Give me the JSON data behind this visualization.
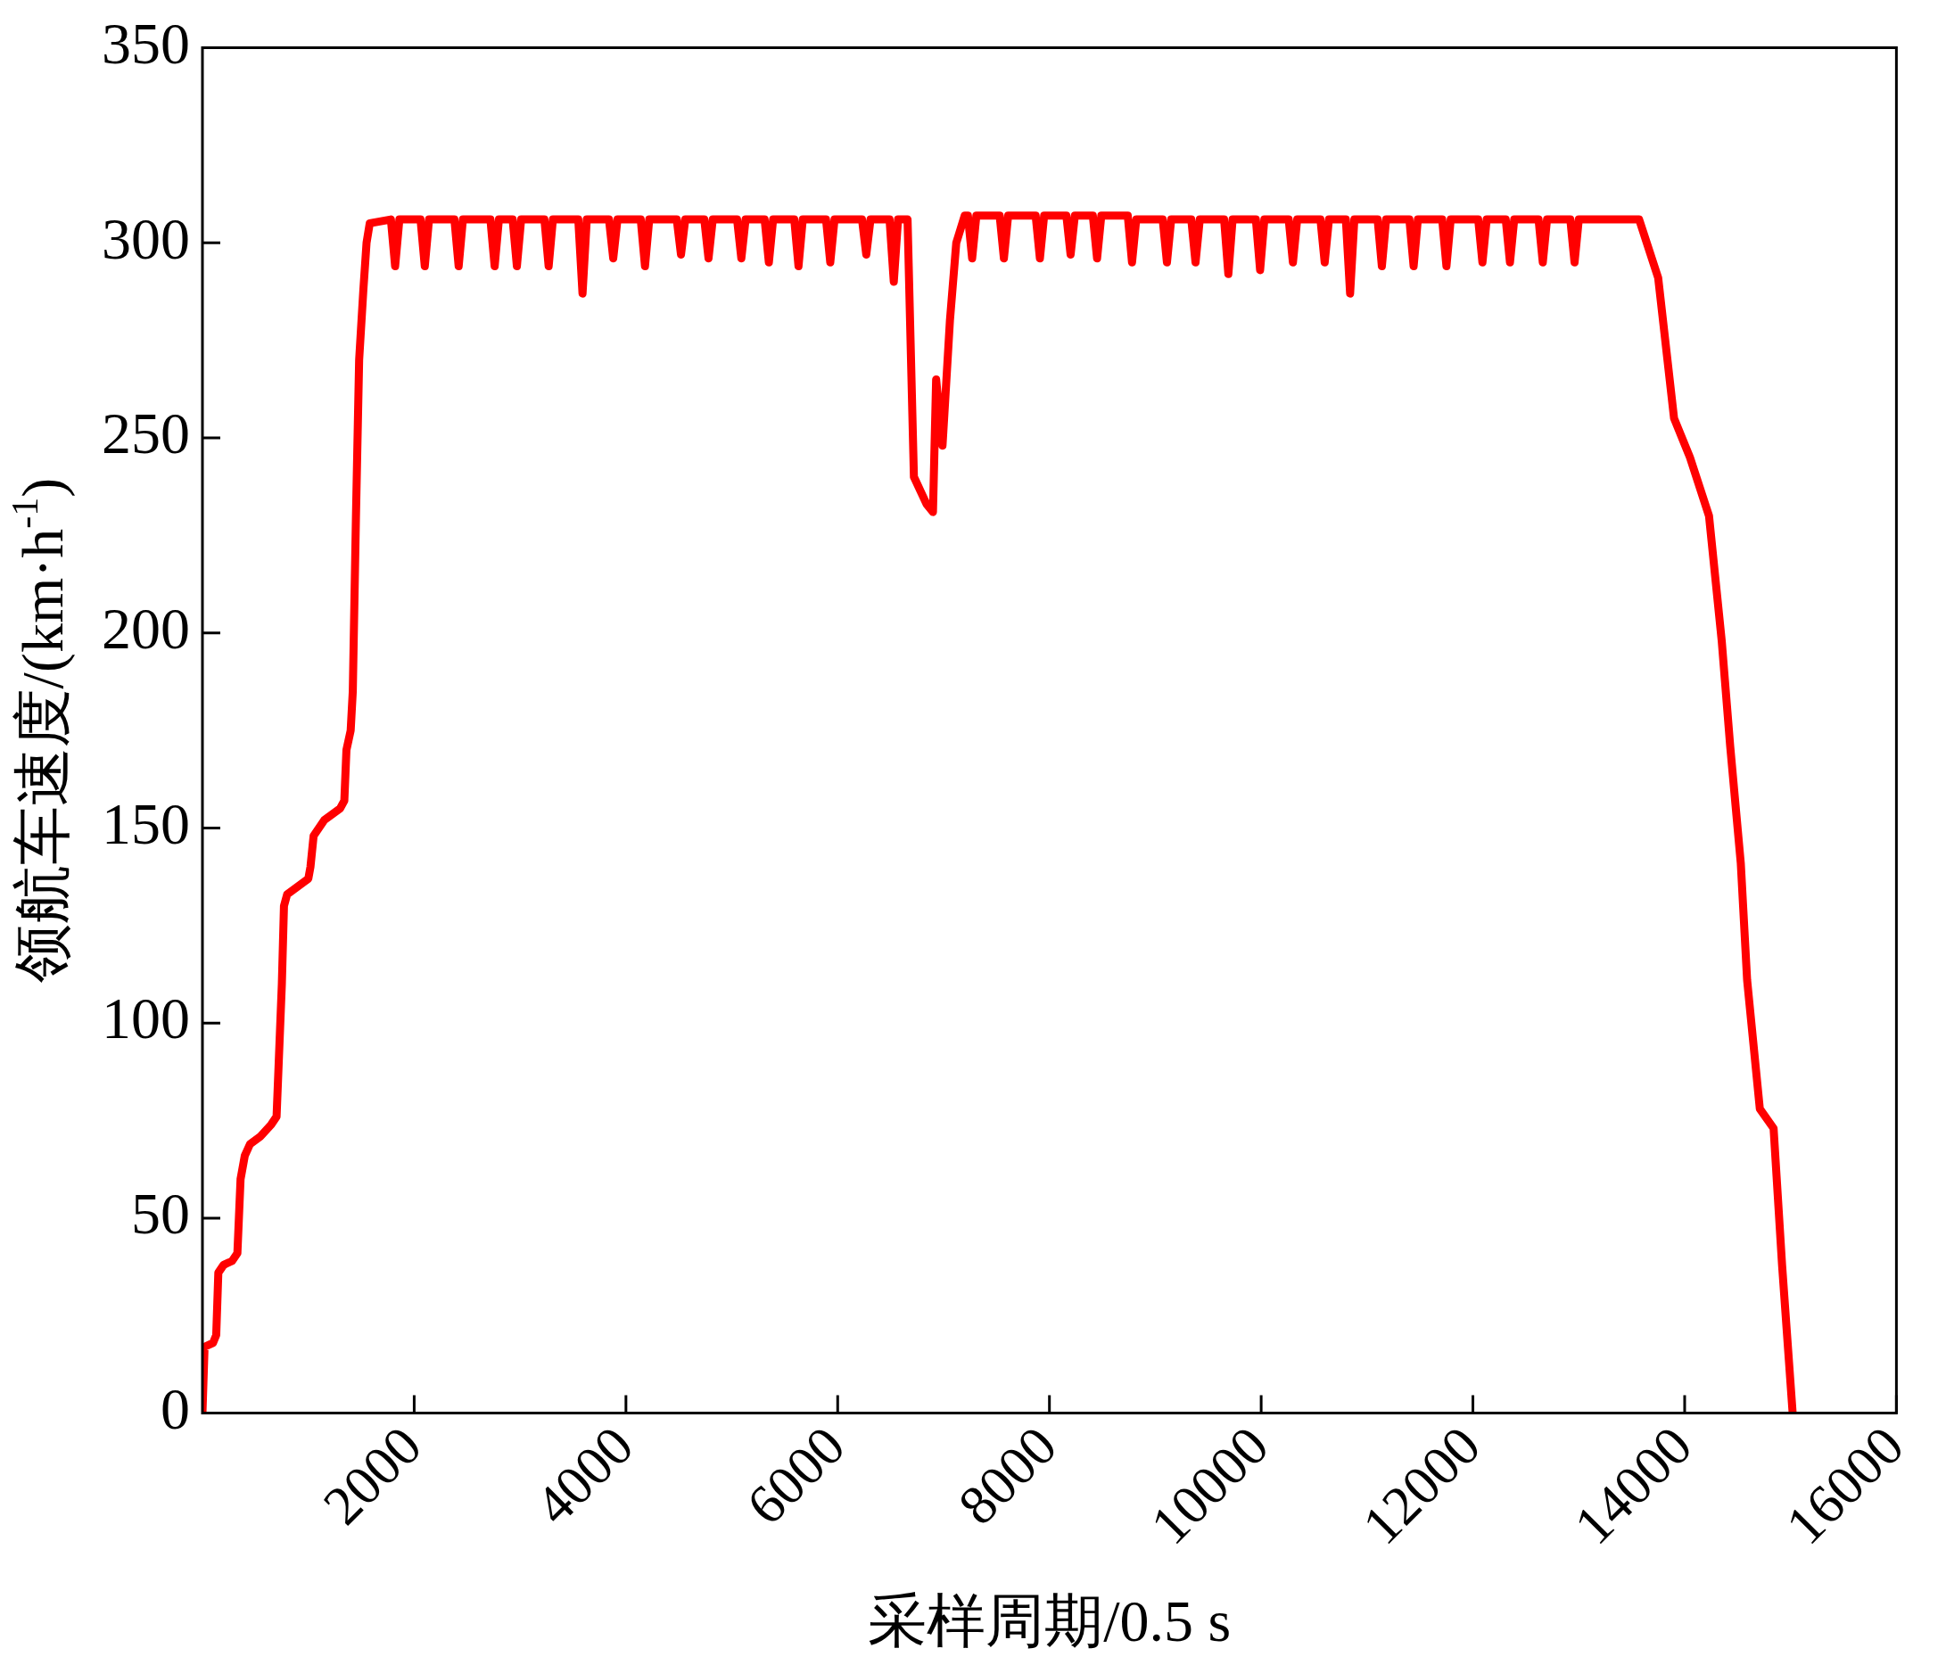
{
  "chart_data": {
    "type": "line",
    "xlabel": "采样周期/0.5 s",
    "ylabel": "领航车速度/(km·h$^{-1}$)",
    "xlim": [
      0,
      16000
    ],
    "ylim": [
      0,
      350
    ],
    "xticks": [
      2000,
      4000,
      6000,
      8000,
      10000,
      12000,
      14000,
      16000
    ],
    "yticks": [
      0,
      50,
      100,
      150,
      200,
      250,
      300,
      350
    ],
    "grid": false,
    "legend": false,
    "marker": "none",
    "line_style": "solid",
    "series": [
      {
        "color": "#ff0000",
        "x": [
          0,
          20,
          100,
          130,
          150,
          200,
          280,
          330,
          360,
          400,
          450,
          550,
          650,
          700,
          750,
          770,
          800,
          900,
          1000,
          1020,
          1050,
          1150,
          1300,
          1340,
          1360,
          1400,
          1420,
          1450,
          1480,
          1520,
          1550,
          1580,
          1780,
          1820,
          1860,
          2060,
          2100,
          2140,
          2380,
          2420,
          2460,
          2720,
          2760,
          2800,
          2930,
          2970,
          3010,
          3230,
          3270,
          3310,
          3550,
          3590,
          3630,
          3840,
          3880,
          3920,
          4140,
          4180,
          4220,
          4480,
          4520,
          4560,
          4740,
          4780,
          4820,
          5050,
          5090,
          5130,
          5310,
          5350,
          5390,
          5590,
          5630,
          5670,
          5890,
          5930,
          5970,
          6230,
          6270,
          6310,
          6490,
          6530,
          6570,
          6660,
          6720,
          6840,
          6900,
          6930,
          6990,
          7060,
          7120,
          7200,
          7230,
          7270,
          7310,
          7530,
          7570,
          7610,
          7870,
          7910,
          7950,
          8160,
          8200,
          8240,
          8410,
          8450,
          8490,
          8740,
          8780,
          8820,
          9070,
          9110,
          9150,
          9340,
          9380,
          9420,
          9650,
          9690,
          9730,
          9950,
          9990,
          10030,
          10260,
          10300,
          10340,
          10560,
          10600,
          10640,
          10800,
          10840,
          10880,
          11100,
          11140,
          11180,
          11400,
          11440,
          11480,
          11710,
          11750,
          11790,
          12050,
          12090,
          12130,
          12310,
          12350,
          12390,
          12620,
          12660,
          12700,
          12920,
          12960,
          13000,
          13570,
          13750,
          13900,
          14050,
          14230,
          14350,
          14430,
          14530,
          14590,
          14710,
          14840,
          14920,
          15020
        ],
        "values": [
          0,
          17,
          18,
          20,
          36,
          38,
          39,
          41,
          60,
          66,
          69,
          71,
          74,
          76,
          110,
          130,
          133,
          135,
          137,
          140,
          148,
          152,
          155,
          157,
          170,
          175,
          185,
          230,
          270,
          288,
          300,
          305,
          306,
          294,
          306,
          306,
          294,
          306,
          306,
          294,
          306,
          306,
          294,
          306,
          306,
          294,
          306,
          306,
          294,
          306,
          306,
          287,
          306,
          306,
          296,
          306,
          306,
          294,
          306,
          306,
          297,
          306,
          306,
          296,
          306,
          306,
          296,
          306,
          306,
          295,
          306,
          306,
          294,
          306,
          306,
          295,
          306,
          306,
          297,
          306,
          306,
          290,
          306,
          306,
          240,
          233,
          231,
          265,
          248,
          280,
          300,
          307,
          307,
          296,
          307,
          307,
          296,
          307,
          307,
          296,
          307,
          307,
          297,
          307,
          307,
          296,
          307,
          307,
          295,
          306,
          306,
          295,
          306,
          306,
          295,
          306,
          306,
          292,
          306,
          306,
          293,
          306,
          306,
          295,
          306,
          306,
          295,
          306,
          306,
          287,
          306,
          306,
          294,
          306,
          306,
          294,
          306,
          306,
          294,
          306,
          306,
          295,
          306,
          306,
          295,
          306,
          306,
          295,
          306,
          306,
          295,
          306,
          306,
          291,
          255,
          245,
          230,
          198,
          171,
          141,
          111,
          78,
          73,
          38,
          0
        ]
      }
    ]
  }
}
